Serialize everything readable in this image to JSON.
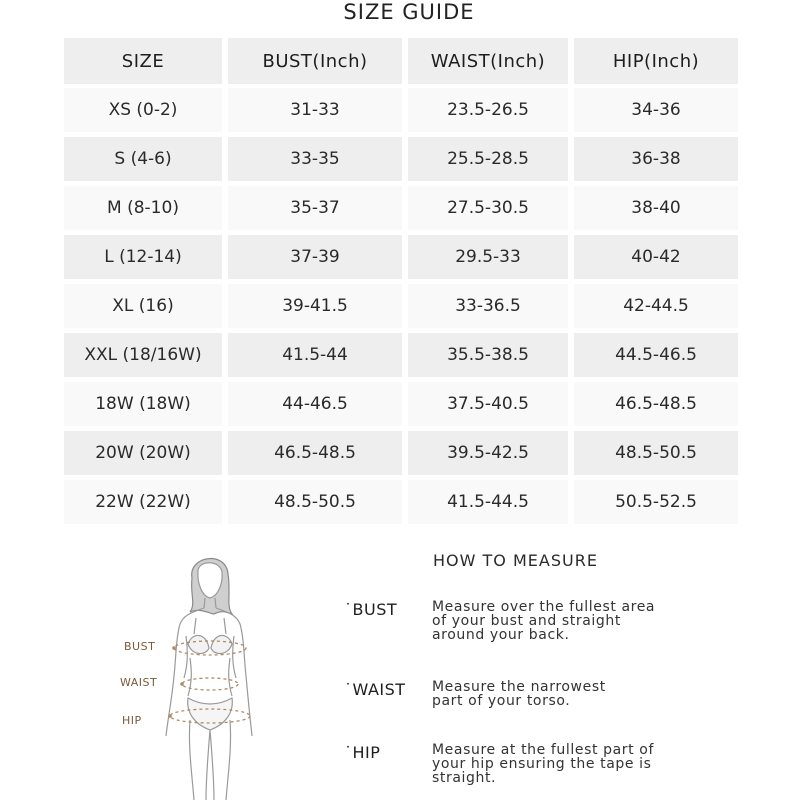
{
  "title": "SIZE GUIDE",
  "table": {
    "headers": [
      "SIZE",
      "BUST(Inch)",
      "WAIST(Inch)",
      "HIP(Inch)"
    ],
    "rows": [
      [
        "XS (0-2)",
        "31-33",
        "23.5-26.5",
        "34-36"
      ],
      [
        "S (4-6)",
        "33-35",
        "25.5-28.5",
        "36-38"
      ],
      [
        "M (8-10)",
        "35-37",
        "27.5-30.5",
        "38-40"
      ],
      [
        "L (12-14)",
        "37-39",
        "29.5-33",
        "40-42"
      ],
      [
        "XL (16)",
        "39-41.5",
        "33-36.5",
        "42-44.5"
      ],
      [
        "XXL (18/16W)",
        "41.5-44",
        "35.5-38.5",
        "44.5-46.5"
      ],
      [
        "18W (18W)",
        "44-46.5",
        "37.5-40.5",
        "46.5-48.5"
      ],
      [
        "20W (20W)",
        "46.5-48.5",
        "39.5-42.5",
        "48.5-50.5"
      ],
      [
        "22W (22W)",
        "48.5-50.5",
        "41.5-44.5",
        "50.5-52.5"
      ]
    ]
  },
  "figure": {
    "labels": {
      "bust": "BUST",
      "waist": "WAIST",
      "hip": "HIP"
    },
    "accent_color": "#b08a66"
  },
  "how_to_measure": {
    "heading": "HOW TO MEASURE",
    "items": [
      {
        "term": "˙BUST",
        "desc": [
          "Measure over the fullest area",
          "of your bust and straight",
          "around your back."
        ]
      },
      {
        "term": "˙WAIST",
        "desc": [
          "Measure the narrowest",
          "part of your torso."
        ]
      },
      {
        "term": "˙HIP",
        "desc": [
          "Measure at the fullest part of",
          "your hip ensuring the tape is",
          "straight."
        ]
      }
    ]
  }
}
